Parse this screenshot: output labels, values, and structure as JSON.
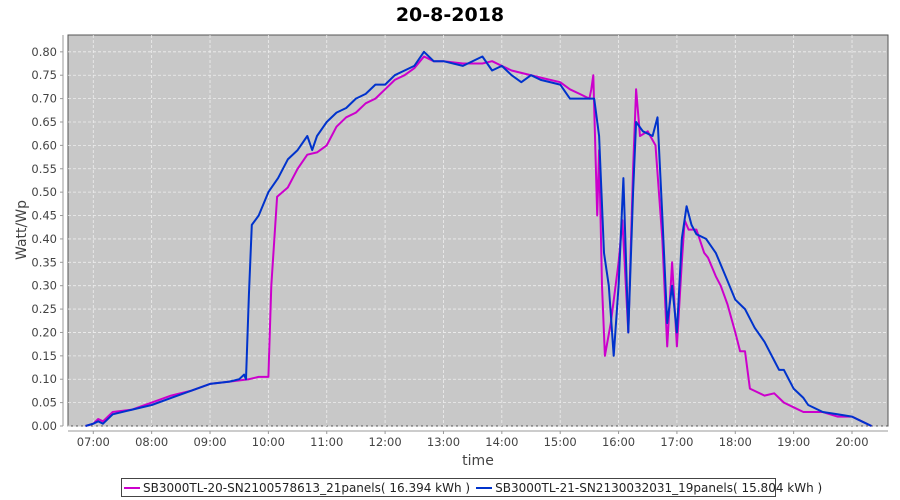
{
  "chart_data": {
    "type": "line",
    "title": "20-8-2018",
    "xlabel": "time",
    "ylabel": "Watt/Wp",
    "xlim": [
      "06:34",
      "20:37"
    ],
    "ylim": [
      0,
      0.836
    ],
    "x_ticks": [
      "07:00",
      "08:00",
      "09:00",
      "10:00",
      "11:00",
      "12:00",
      "13:00",
      "14:00",
      "15:00",
      "16:00",
      "17:00",
      "18:00",
      "19:00",
      "20:00"
    ],
    "y_ticks": [
      "0.00",
      "0.05",
      "0.10",
      "0.15",
      "0.20",
      "0.25",
      "0.30",
      "0.35",
      "0.40",
      "0.45",
      "0.50",
      "0.55",
      "0.60",
      "0.65",
      "0.70",
      "0.75",
      "0.80"
    ],
    "grid": true,
    "legend_position": "bottom",
    "series": [
      {
        "name": "SB3000TL-20-SN2100578613_21panels( 16.394 kWh )",
        "color": "#cc00cc",
        "points": [
          [
            "06:52",
            0
          ],
          [
            "07:00",
            0.005
          ],
          [
            "07:05",
            0.015
          ],
          [
            "07:10",
            0.01
          ],
          [
            "07:20",
            0.03
          ],
          [
            "07:40",
            0.035
          ],
          [
            "08:00",
            0.05
          ],
          [
            "08:20",
            0.065
          ],
          [
            "08:40",
            0.075
          ],
          [
            "09:00",
            0.09
          ],
          [
            "09:20",
            0.095
          ],
          [
            "09:40",
            0.1
          ],
          [
            "09:50",
            0.105
          ],
          [
            "10:00",
            0.105
          ],
          [
            "10:03",
            0.3
          ],
          [
            "10:09",
            0.49
          ],
          [
            "10:20",
            0.51
          ],
          [
            "10:30",
            0.55
          ],
          [
            "10:40",
            0.58
          ],
          [
            "10:50",
            0.585
          ],
          [
            "11:00",
            0.6
          ],
          [
            "11:10",
            0.64
          ],
          [
            "11:20",
            0.66
          ],
          [
            "11:30",
            0.67
          ],
          [
            "11:40",
            0.69
          ],
          [
            "11:50",
            0.7
          ],
          [
            "12:00",
            0.72
          ],
          [
            "12:10",
            0.74
          ],
          [
            "12:20",
            0.75
          ],
          [
            "12:30",
            0.765
          ],
          [
            "12:40",
            0.79
          ],
          [
            "12:50",
            0.78
          ],
          [
            "13:00",
            0.78
          ],
          [
            "13:20",
            0.775
          ],
          [
            "13:40",
            0.775
          ],
          [
            "13:50",
            0.78
          ],
          [
            "14:00",
            0.77
          ],
          [
            "14:10",
            0.76
          ],
          [
            "14:20",
            0.755
          ],
          [
            "14:40",
            0.745
          ],
          [
            "15:00",
            0.735
          ],
          [
            "15:10",
            0.72
          ],
          [
            "15:20",
            0.71
          ],
          [
            "15:30",
            0.7
          ],
          [
            "15:32",
            0.72
          ],
          [
            "15:34",
            0.75
          ],
          [
            "15:38",
            0.45
          ],
          [
            "15:40",
            0.59
          ],
          [
            "15:43",
            0.3
          ],
          [
            "15:46",
            0.15
          ],
          [
            "15:52",
            0.22
          ],
          [
            "16:00",
            0.35
          ],
          [
            "16:04",
            0.44
          ],
          [
            "16:10",
            0.2
          ],
          [
            "16:15",
            0.55
          ],
          [
            "16:18",
            0.72
          ],
          [
            "16:22",
            0.62
          ],
          [
            "16:30",
            0.63
          ],
          [
            "16:38",
            0.6
          ],
          [
            "16:45",
            0.4
          ],
          [
            "16:50",
            0.17
          ],
          [
            "16:55",
            0.35
          ],
          [
            "17:00",
            0.17
          ],
          [
            "17:05",
            0.35
          ],
          [
            "17:08",
            0.44
          ],
          [
            "17:12",
            0.42
          ],
          [
            "17:20",
            0.42
          ],
          [
            "17:28",
            0.37
          ],
          [
            "17:32",
            0.36
          ],
          [
            "17:40",
            0.32
          ],
          [
            "17:45",
            0.3
          ],
          [
            "17:52",
            0.26
          ],
          [
            "18:00",
            0.2
          ],
          [
            "18:05",
            0.16
          ],
          [
            "18:10",
            0.16
          ],
          [
            "18:15",
            0.08
          ],
          [
            "18:30",
            0.065
          ],
          [
            "18:40",
            0.07
          ],
          [
            "18:50",
            0.05
          ],
          [
            "19:00",
            0.04
          ],
          [
            "19:10",
            0.03
          ],
          [
            "19:30",
            0.03
          ],
          [
            "19:45",
            0.02
          ],
          [
            "20:00",
            0.02
          ],
          [
            "20:10",
            0.01
          ],
          [
            "20:20",
            0
          ]
        ]
      },
      {
        "name": "SB3000TL-21-SN2130032031_19panels( 15.804 kWh )",
        "color": "#0033cc",
        "points": [
          [
            "06:52",
            0
          ],
          [
            "07:00",
            0.005
          ],
          [
            "07:05",
            0.01
          ],
          [
            "07:10",
            0.005
          ],
          [
            "07:20",
            0.025
          ],
          [
            "07:40",
            0.035
          ],
          [
            "08:00",
            0.045
          ],
          [
            "08:20",
            0.06
          ],
          [
            "08:40",
            0.075
          ],
          [
            "09:00",
            0.09
          ],
          [
            "09:20",
            0.095
          ],
          [
            "09:30",
            0.1
          ],
          [
            "09:35",
            0.11
          ],
          [
            "09:37",
            0.1
          ],
          [
            "09:40",
            0.28
          ],
          [
            "09:43",
            0.43
          ],
          [
            "09:50",
            0.45
          ],
          [
            "10:00",
            0.5
          ],
          [
            "10:10",
            0.53
          ],
          [
            "10:20",
            0.57
          ],
          [
            "10:30",
            0.59
          ],
          [
            "10:40",
            0.62
          ],
          [
            "10:45",
            0.59
          ],
          [
            "10:50",
            0.62
          ],
          [
            "11:00",
            0.65
          ],
          [
            "11:10",
            0.67
          ],
          [
            "11:20",
            0.68
          ],
          [
            "11:30",
            0.7
          ],
          [
            "11:40",
            0.71
          ],
          [
            "11:50",
            0.73
          ],
          [
            "12:00",
            0.73
          ],
          [
            "12:10",
            0.75
          ],
          [
            "12:20",
            0.76
          ],
          [
            "12:30",
            0.77
          ],
          [
            "12:40",
            0.8
          ],
          [
            "12:50",
            0.78
          ],
          [
            "13:00",
            0.78
          ],
          [
            "13:20",
            0.77
          ],
          [
            "13:40",
            0.79
          ],
          [
            "13:50",
            0.76
          ],
          [
            "14:00",
            0.77
          ],
          [
            "14:10",
            0.75
          ],
          [
            "14:20",
            0.735
          ],
          [
            "14:30",
            0.75
          ],
          [
            "14:40",
            0.74
          ],
          [
            "15:00",
            0.73
          ],
          [
            "15:10",
            0.7
          ],
          [
            "15:20",
            0.7
          ],
          [
            "15:35",
            0.7
          ],
          [
            "15:40",
            0.62
          ],
          [
            "15:45",
            0.37
          ],
          [
            "15:50",
            0.3
          ],
          [
            "15:55",
            0.15
          ],
          [
            "16:00",
            0.3
          ],
          [
            "16:05",
            0.53
          ],
          [
            "16:10",
            0.2
          ],
          [
            "16:15",
            0.5
          ],
          [
            "16:18",
            0.65
          ],
          [
            "16:25",
            0.63
          ],
          [
            "16:35",
            0.62
          ],
          [
            "16:40",
            0.66
          ],
          [
            "16:45",
            0.45
          ],
          [
            "16:50",
            0.22
          ],
          [
            "16:55",
            0.3
          ],
          [
            "17:00",
            0.2
          ],
          [
            "17:05",
            0.4
          ],
          [
            "17:10",
            0.47
          ],
          [
            "17:15",
            0.43
          ],
          [
            "17:20",
            0.41
          ],
          [
            "17:30",
            0.4
          ],
          [
            "17:40",
            0.37
          ],
          [
            "17:50",
            0.32
          ],
          [
            "18:00",
            0.27
          ],
          [
            "18:10",
            0.25
          ],
          [
            "18:20",
            0.21
          ],
          [
            "18:30",
            0.18
          ],
          [
            "18:40",
            0.14
          ],
          [
            "18:45",
            0.12
          ],
          [
            "18:50",
            0.12
          ],
          [
            "19:00",
            0.08
          ],
          [
            "19:10",
            0.06
          ],
          [
            "19:15",
            0.045
          ],
          [
            "19:30",
            0.03
          ],
          [
            "19:45",
            0.025
          ],
          [
            "20:00",
            0.02
          ],
          [
            "20:10",
            0.01
          ],
          [
            "20:20",
            0
          ]
        ]
      }
    ]
  }
}
